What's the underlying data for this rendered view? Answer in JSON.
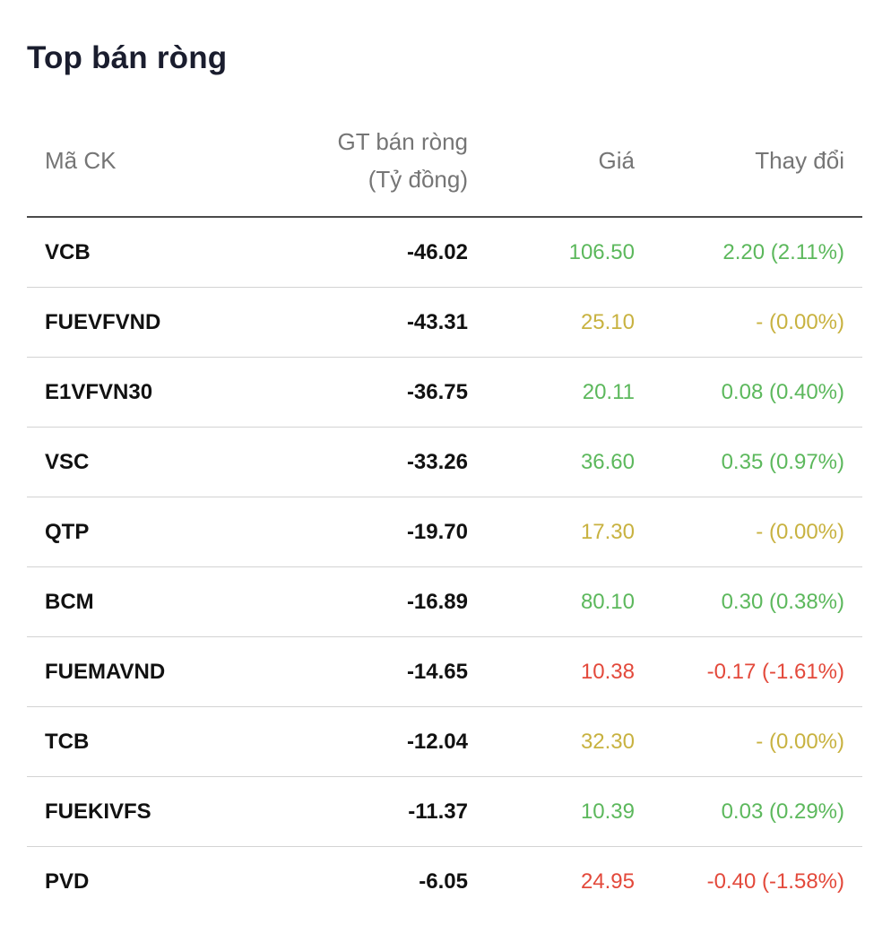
{
  "title": "Top bán ròng",
  "columns": {
    "symbol": "Mã CK",
    "net_value_line1": "GT bán ròng",
    "net_value_line2": "(Tỷ đồng)",
    "price": "Giá",
    "change": "Thay đổi"
  },
  "colors": {
    "up": "#5cb85c",
    "reference": "#c8b240",
    "down": "#e3493b",
    "text": "#111111",
    "header_text": "#757575"
  },
  "rows": [
    {
      "symbol": "VCB",
      "net_value": "-46.02",
      "price": "106.50",
      "change": "2.20 (2.11%)",
      "trend": "up"
    },
    {
      "symbol": "FUEVFVND",
      "net_value": "-43.31",
      "price": "25.10",
      "change": "- (0.00%)",
      "trend": "ref"
    },
    {
      "symbol": "E1VFVN30",
      "net_value": "-36.75",
      "price": "20.11",
      "change": "0.08 (0.40%)",
      "trend": "up"
    },
    {
      "symbol": "VSC",
      "net_value": "-33.26",
      "price": "36.60",
      "change": "0.35 (0.97%)",
      "trend": "up"
    },
    {
      "symbol": "QTP",
      "net_value": "-19.70",
      "price": "17.30",
      "change": "- (0.00%)",
      "trend": "ref"
    },
    {
      "symbol": "BCM",
      "net_value": "-16.89",
      "price": "80.10",
      "change": "0.30 (0.38%)",
      "trend": "up"
    },
    {
      "symbol": "FUEMAVND",
      "net_value": "-14.65",
      "price": "10.38",
      "change": "-0.17 (-1.61%)",
      "trend": "down"
    },
    {
      "symbol": "TCB",
      "net_value": "-12.04",
      "price": "32.30",
      "change": "- (0.00%)",
      "trend": "ref"
    },
    {
      "symbol": "FUEKIVFS",
      "net_value": "-11.37",
      "price": "10.39",
      "change": "0.03 (0.29%)",
      "trend": "up"
    },
    {
      "symbol": "PVD",
      "net_value": "-6.05",
      "price": "24.95",
      "change": "-0.40 (-1.58%)",
      "trend": "down"
    }
  ]
}
